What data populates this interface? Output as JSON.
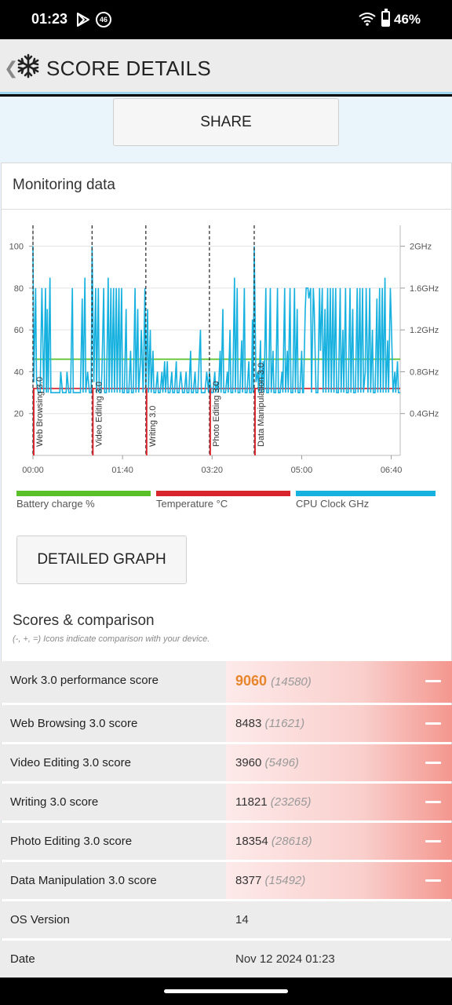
{
  "status": {
    "time": "01:23",
    "network_badge": "46",
    "battery_pct": "46%",
    "battery_level": 0.46
  },
  "header": {
    "title": "SCORE DETAILS",
    "back_icon": "back-chevron-icon",
    "logo_icon": "snowflake-icon"
  },
  "share_label": "SHARE",
  "monitoring": {
    "title": "Monitoring data",
    "detailed_graph_label": "DETAILED GRAPH",
    "legend": [
      {
        "label": "Battery charge %",
        "color": "#5ac02a"
      },
      {
        "label": "Temperature °C",
        "color": "#d8252d"
      },
      {
        "label": "CPU Clock GHz",
        "color": "#17b1e0"
      }
    ]
  },
  "chart_data": {
    "type": "line",
    "x_ticks": [
      "00:00",
      "01:40",
      "03:20",
      "05:00",
      "06:40"
    ],
    "y_left_ticks": [
      "20",
      "40",
      "60",
      "80",
      "100"
    ],
    "y_right_ticks": [
      "0.4GHz",
      "0.8GHz",
      "1.2GHz",
      "1.6GHz",
      "2GHz"
    ],
    "ylim_left": [
      0,
      110
    ],
    "ylim_right": [
      0,
      2.2
    ],
    "xlim_seconds": [
      0,
      410
    ],
    "grid": true,
    "markers": [
      {
        "label": "Web Browsing 3.0",
        "t": 0
      },
      {
        "label": "Video Editing 3.0",
        "t": 66
      },
      {
        "label": "Writing 3.0",
        "t": 126
      },
      {
        "label": "Photo Editing 3.0",
        "t": 197
      },
      {
        "label": "Data Manipulation 3.0",
        "t": 247
      }
    ],
    "series": [
      {
        "name": "Battery charge %",
        "color": "#5ac02a",
        "values": [
          [
            0,
            46
          ],
          [
            410,
            46
          ]
        ]
      },
      {
        "name": "Temperature °C",
        "color": "#d8252d",
        "values": [
          [
            0,
            32
          ],
          [
            410,
            32
          ]
        ]
      },
      {
        "name": "CPU Clock GHz",
        "color": "#17b1e0",
        "values": [
          [
            0,
            2.0
          ],
          [
            1,
            0.7
          ],
          [
            3,
            1.6
          ],
          [
            4,
            0.7
          ],
          [
            6,
            0.6
          ],
          [
            8,
            0.6
          ],
          [
            10,
            1.6
          ],
          [
            12,
            0.6
          ],
          [
            14,
            1.6
          ],
          [
            15,
            0.6
          ],
          [
            16,
            1.4
          ],
          [
            17,
            0.6
          ],
          [
            19,
            1.7
          ],
          [
            20,
            0.6
          ],
          [
            23,
            0.6
          ],
          [
            26,
            0.6
          ],
          [
            28,
            0.6
          ],
          [
            30,
            0.6
          ],
          [
            31,
            0.8
          ],
          [
            33,
            0.6
          ],
          [
            35,
            0.6
          ],
          [
            37,
            0.6
          ],
          [
            38,
            0.8
          ],
          [
            40,
            0.6
          ],
          [
            42,
            0.6
          ],
          [
            44,
            1.6
          ],
          [
            45,
            0.6
          ],
          [
            47,
            0.6
          ],
          [
            49,
            0.6
          ],
          [
            51,
            0.6
          ],
          [
            53,
            0.6
          ],
          [
            55,
            1.5
          ],
          [
            56,
            0.6
          ],
          [
            58,
            1.7
          ],
          [
            59,
            0.6
          ],
          [
            61,
            0.8
          ],
          [
            63,
            0.6
          ],
          [
            65,
            0.6
          ],
          [
            66,
            2.0
          ],
          [
            68,
            0.7
          ],
          [
            70,
            1.6
          ],
          [
            71,
            0.6
          ],
          [
            73,
            1.6
          ],
          [
            74,
            0.6
          ],
          [
            76,
            0.6
          ],
          [
            77,
            0.8
          ],
          [
            79,
            1.6
          ],
          [
            80,
            0.6
          ],
          [
            82,
            0.6
          ],
          [
            84,
            1.7
          ],
          [
            85,
            0.6
          ],
          [
            87,
            1.6
          ],
          [
            88,
            0.6
          ],
          [
            90,
            1.6
          ],
          [
            91,
            0.6
          ],
          [
            93,
            1.6
          ],
          [
            94,
            0.6
          ],
          [
            96,
            1.6
          ],
          [
            97,
            0.6
          ],
          [
            99,
            1.6
          ],
          [
            100,
            0.6
          ],
          [
            102,
            0.6
          ],
          [
            104,
            1.4
          ],
          [
            105,
            0.6
          ],
          [
            107,
            0.6
          ],
          [
            109,
            1.0
          ],
          [
            110,
            0.6
          ],
          [
            112,
            0.6
          ],
          [
            114,
            1.6
          ],
          [
            115,
            0.6
          ],
          [
            117,
            1.4
          ],
          [
            118,
            0.6
          ],
          [
            120,
            0.9
          ],
          [
            121,
            1.2
          ],
          [
            123,
            0.6
          ],
          [
            125,
            1.6
          ],
          [
            126,
            0.6
          ],
          [
            128,
            1.4
          ],
          [
            129,
            0.6
          ],
          [
            131,
            1.2
          ],
          [
            132,
            0.6
          ],
          [
            134,
            1.0
          ],
          [
            135,
            0.6
          ],
          [
            137,
            0.6
          ],
          [
            139,
            0.8
          ],
          [
            140,
            0.6
          ],
          [
            142,
            0.6
          ],
          [
            144,
            0.8
          ],
          [
            145,
            0.6
          ],
          [
            147,
            0.9
          ],
          [
            148,
            0.6
          ],
          [
            150,
            0.9
          ],
          [
            151,
            0.6
          ],
          [
            153,
            0.6
          ],
          [
            155,
            0.8
          ],
          [
            156,
            0.6
          ],
          [
            158,
            0.6
          ],
          [
            160,
            0.9
          ],
          [
            161,
            0.6
          ],
          [
            163,
            0.6
          ],
          [
            165,
            0.8
          ],
          [
            167,
            0.6
          ],
          [
            169,
            0.6
          ],
          [
            171,
            0.8
          ],
          [
            172,
            0.6
          ],
          [
            174,
            0.6
          ],
          [
            176,
            1.0
          ],
          [
            177,
            0.6
          ],
          [
            179,
            0.6
          ],
          [
            181,
            0.8
          ],
          [
            182,
            0.6
          ],
          [
            184,
            0.6
          ],
          [
            187,
            1.2
          ],
          [
            188,
            0.6
          ],
          [
            190,
            0.6
          ],
          [
            192,
            0.6
          ],
          [
            194,
            0.8
          ],
          [
            196,
            0.6
          ],
          [
            197,
            0.8
          ],
          [
            199,
            0.6
          ],
          [
            201,
            0.6
          ],
          [
            203,
            0.8
          ],
          [
            204,
            0.6
          ],
          [
            206,
            0.7
          ],
          [
            207,
            0.6
          ],
          [
            209,
            1.0
          ],
          [
            210,
            0.6
          ],
          [
            212,
            1.4
          ],
          [
            213,
            0.6
          ],
          [
            215,
            0.6
          ],
          [
            217,
            0.8
          ],
          [
            218,
            0.6
          ],
          [
            220,
            1.2
          ],
          [
            221,
            0.6
          ],
          [
            223,
            0.6
          ],
          [
            225,
            1.7
          ],
          [
            226,
            0.6
          ],
          [
            228,
            1.6
          ],
          [
            229,
            0.6
          ],
          [
            231,
            0.6
          ],
          [
            233,
            1.1
          ],
          [
            234,
            0.6
          ],
          [
            236,
            1.6
          ],
          [
            237,
            0.6
          ],
          [
            239,
            0.6
          ],
          [
            241,
            0.9
          ],
          [
            242,
            0.6
          ],
          [
            244,
            0.6
          ],
          [
            245,
            1.3
          ],
          [
            246,
            0.6
          ],
          [
            247,
            2.0
          ],
          [
            249,
            0.7
          ],
          [
            251,
            0.8
          ],
          [
            252,
            0.6
          ],
          [
            254,
            1.1
          ],
          [
            255,
            0.6
          ],
          [
            257,
            0.9
          ],
          [
            258,
            0.6
          ],
          [
            260,
            1.6
          ],
          [
            261,
            0.6
          ],
          [
            263,
            0.6
          ],
          [
            265,
            1.6
          ],
          [
            266,
            0.6
          ],
          [
            268,
            1.0
          ],
          [
            269,
            0.6
          ],
          [
            271,
            0.6
          ],
          [
            273,
            1.6
          ],
          [
            274,
            0.6
          ],
          [
            276,
            0.6
          ],
          [
            278,
            0.8
          ],
          [
            279,
            0.6
          ],
          [
            281,
            1.6
          ],
          [
            282,
            0.6
          ],
          [
            284,
            1.0
          ],
          [
            285,
            0.6
          ],
          [
            287,
            1.6
          ],
          [
            288,
            0.6
          ],
          [
            290,
            0.6
          ],
          [
            292,
            1.6
          ],
          [
            293,
            0.6
          ],
          [
            295,
            1.4
          ],
          [
            296,
            0.6
          ],
          [
            298,
            0.6
          ],
          [
            300,
            1.0
          ],
          [
            301,
            0.6
          ],
          [
            302,
            0.6
          ],
          [
            304,
            1.4
          ],
          [
            305,
            1.6
          ],
          [
            307,
            1.6
          ],
          [
            308,
            1.5
          ],
          [
            310,
            1.6
          ],
          [
            311,
            0.6
          ],
          [
            313,
            1.6
          ],
          [
            314,
            1.4
          ],
          [
            316,
            0.6
          ],
          [
            318,
            0.6
          ],
          [
            320,
            1.6
          ],
          [
            321,
            1.0
          ],
          [
            323,
            1.6
          ],
          [
            324,
            0.6
          ],
          [
            326,
            1.4
          ],
          [
            327,
            0.6
          ],
          [
            329,
            1.6
          ],
          [
            330,
            0.6
          ],
          [
            332,
            1.6
          ],
          [
            333,
            0.6
          ],
          [
            335,
            1.6
          ],
          [
            336,
            0.6
          ],
          [
            338,
            1.6
          ],
          [
            339,
            0.6
          ],
          [
            341,
            0.6
          ],
          [
            343,
            1.6
          ],
          [
            344,
            0.6
          ],
          [
            346,
            1.2
          ],
          [
            347,
            0.6
          ],
          [
            349,
            1.6
          ],
          [
            350,
            0.6
          ],
          [
            352,
            0.6
          ],
          [
            354,
            1.6
          ],
          [
            355,
            0.6
          ],
          [
            357,
            1.4
          ],
          [
            358,
            0.6
          ],
          [
            360,
            0.6
          ],
          [
            362,
            1.6
          ],
          [
            363,
            0.6
          ],
          [
            365,
            1.6
          ],
          [
            366,
            0.6
          ],
          [
            368,
            1.6
          ],
          [
            369,
            0.6
          ],
          [
            371,
            0.8
          ],
          [
            372,
            1.6
          ],
          [
            374,
            0.6
          ],
          [
            376,
            1.6
          ],
          [
            377,
            0.6
          ],
          [
            379,
            1.2
          ],
          [
            380,
            0.6
          ],
          [
            382,
            0.6
          ],
          [
            384,
            1.5
          ],
          [
            385,
            0.6
          ],
          [
            387,
            1.6
          ],
          [
            388,
            0.6
          ],
          [
            390,
            1.6
          ],
          [
            391,
            0.6
          ],
          [
            393,
            1.7
          ],
          [
            394,
            0.6
          ],
          [
            396,
            1.1
          ],
          [
            397,
            0.6
          ],
          [
            399,
            1.6
          ],
          [
            400,
            1.3
          ],
          [
            402,
            0.6
          ],
          [
            404,
            0.8
          ],
          [
            405,
            0.6
          ],
          [
            407,
            0.9
          ],
          [
            408,
            0.6
          ],
          [
            410,
            0.6
          ]
        ]
      }
    ]
  },
  "scores": {
    "title": "Scores & comparison",
    "note": "(-, +, =) Icons indicate comparison with your device.",
    "rows": [
      {
        "label": "Work 3.0 performance score",
        "value": "9060",
        "compare": "(14580)",
        "indicator": "minus-icon"
      },
      {
        "label": "Web Browsing 3.0 score",
        "value": "8483",
        "compare": "(11621)",
        "indicator": "minus-icon"
      },
      {
        "label": "Video Editing 3.0 score",
        "value": "3960",
        "compare": "(5496)",
        "indicator": "minus-icon"
      },
      {
        "label": "Writing 3.0 score",
        "value": "11821",
        "compare": "(23265)",
        "indicator": "minus-icon"
      },
      {
        "label": "Photo Editing 3.0 score",
        "value": "18354",
        "compare": "(28618)",
        "indicator": "minus-icon"
      },
      {
        "label": "Data Manipulation 3.0 score",
        "value": "8377",
        "compare": "(15492)",
        "indicator": "minus-icon"
      }
    ],
    "info": [
      {
        "label": "OS Version",
        "value": "14"
      },
      {
        "label": "Date",
        "value": "Nov 12 2024 01:23"
      }
    ]
  }
}
